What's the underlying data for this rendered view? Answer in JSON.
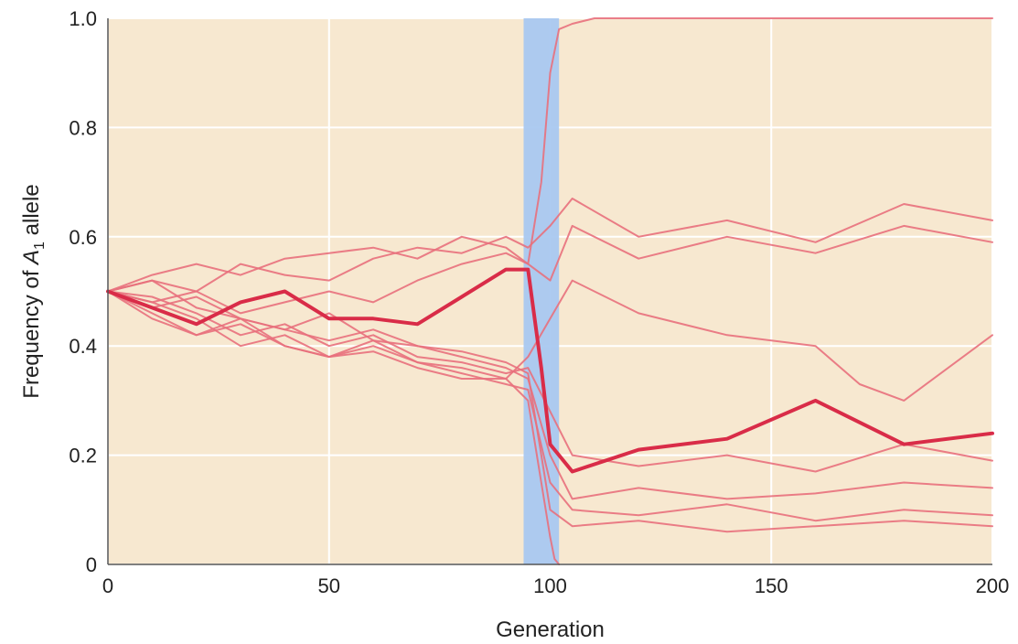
{
  "chart_data": {
    "type": "line",
    "title": "",
    "xlabel": "Generation",
    "ylabel": "Frequency of A1 allele",
    "ylabel_parts": {
      "prefix": "Frequency of ",
      "allele": "A",
      "sub": "1",
      "suffix": " allele"
    },
    "xlim": [
      0,
      200
    ],
    "ylim": [
      0,
      1.0
    ],
    "xticks": [
      0,
      50,
      100,
      150,
      200
    ],
    "xtick_labels": [
      "0",
      "50",
      "100",
      "150",
      "200"
    ],
    "yticks": [
      0,
      0.2,
      0.4,
      0.6,
      0.8,
      1.0
    ],
    "ytick_labels": [
      "0",
      "0.2",
      "0.4",
      "0.6",
      "0.8",
      "1.0"
    ],
    "grid": true,
    "legend": "none",
    "bottleneck_band": {
      "x_start": 94,
      "x_end": 102,
      "color": "#a9c8f0"
    },
    "colors": {
      "background": "#f7e8d0",
      "grid": "#ffffff",
      "line": "#e8707c",
      "highlight": "#d92c48"
    },
    "series": [
      {
        "x": [
          0,
          10,
          20,
          30,
          40,
          50,
          60,
          70,
          80,
          90,
          95,
          98,
          100,
          105,
          120,
          140,
          160,
          180,
          200
        ],
        "values": [
          0.5,
          0.47,
          0.44,
          0.48,
          0.5,
          0.45,
          0.45,
          0.44,
          0.49,
          0.54,
          0.54,
          0.36,
          0.22,
          0.17,
          0.21,
          0.23,
          0.3,
          0.22,
          0.24
        ],
        "highlight": true
      },
      {
        "x": [
          0,
          10,
          20,
          30,
          40,
          50,
          60,
          70,
          80,
          90,
          95,
          98,
          100,
          102,
          105,
          110,
          120,
          200
        ],
        "values": [
          0.5,
          0.53,
          0.55,
          0.53,
          0.56,
          0.57,
          0.58,
          0.56,
          0.6,
          0.58,
          0.55,
          0.7,
          0.9,
          0.98,
          0.99,
          1.0,
          1.0,
          1.0
        ]
      },
      {
        "x": [
          0,
          10,
          20,
          30,
          40,
          50,
          60,
          70,
          80,
          90,
          95,
          98,
          100,
          101,
          102
        ],
        "values": [
          0.5,
          0.46,
          0.42,
          0.45,
          0.4,
          0.38,
          0.4,
          0.37,
          0.36,
          0.34,
          0.3,
          0.15,
          0.05,
          0.01,
          0.0
        ]
      },
      {
        "x": [
          0,
          10,
          20,
          30,
          40,
          50,
          60,
          70,
          80,
          90,
          95,
          100,
          105,
          120,
          140,
          160,
          180,
          200
        ],
        "values": [
          0.5,
          0.52,
          0.5,
          0.55,
          0.53,
          0.52,
          0.56,
          0.58,
          0.57,
          0.6,
          0.58,
          0.62,
          0.67,
          0.6,
          0.63,
          0.59,
          0.66,
          0.63
        ]
      },
      {
        "x": [
          0,
          10,
          20,
          30,
          40,
          50,
          60,
          70,
          80,
          90,
          95,
          100,
          105,
          120,
          140,
          160,
          180,
          200
        ],
        "values": [
          0.5,
          0.48,
          0.5,
          0.46,
          0.48,
          0.5,
          0.48,
          0.52,
          0.55,
          0.57,
          0.55,
          0.52,
          0.62,
          0.56,
          0.6,
          0.57,
          0.62,
          0.59
        ]
      },
      {
        "x": [
          0,
          10,
          20,
          30,
          40,
          50,
          60,
          70,
          80,
          90,
          95,
          100,
          105,
          120,
          140,
          160,
          170,
          180,
          200
        ],
        "values": [
          0.5,
          0.45,
          0.42,
          0.44,
          0.4,
          0.38,
          0.39,
          0.36,
          0.34,
          0.34,
          0.38,
          0.45,
          0.52,
          0.46,
          0.42,
          0.4,
          0.33,
          0.3,
          0.42
        ]
      },
      {
        "x": [
          0,
          10,
          20,
          30,
          40,
          50,
          60,
          70,
          80,
          90,
          95,
          100,
          105,
          120,
          140,
          160,
          180,
          200
        ],
        "values": [
          0.5,
          0.49,
          0.46,
          0.42,
          0.44,
          0.4,
          0.42,
          0.38,
          0.37,
          0.35,
          0.36,
          0.28,
          0.2,
          0.18,
          0.2,
          0.17,
          0.22,
          0.19
        ]
      },
      {
        "x": [
          0,
          10,
          20,
          30,
          40,
          50,
          60,
          70,
          80,
          90,
          95,
          100,
          105,
          120,
          140,
          160,
          180,
          200
        ],
        "values": [
          0.5,
          0.52,
          0.47,
          0.45,
          0.43,
          0.46,
          0.41,
          0.4,
          0.38,
          0.36,
          0.34,
          0.2,
          0.12,
          0.14,
          0.12,
          0.13,
          0.15,
          0.14
        ]
      },
      {
        "x": [
          0,
          10,
          20,
          30,
          40,
          50,
          60,
          70,
          80,
          90,
          95,
          100,
          105,
          120,
          140,
          160,
          180,
          200
        ],
        "values": [
          0.5,
          0.48,
          0.45,
          0.4,
          0.42,
          0.38,
          0.41,
          0.37,
          0.35,
          0.33,
          0.32,
          0.15,
          0.1,
          0.09,
          0.11,
          0.08,
          0.1,
          0.09
        ]
      },
      {
        "x": [
          0,
          10,
          20,
          30,
          40,
          50,
          60,
          70,
          80,
          90,
          95,
          100,
          105,
          120,
          140,
          160,
          180,
          200
        ],
        "values": [
          0.5,
          0.47,
          0.49,
          0.45,
          0.43,
          0.41,
          0.43,
          0.4,
          0.39,
          0.37,
          0.35,
          0.1,
          0.07,
          0.08,
          0.06,
          0.07,
          0.08,
          0.07
        ]
      }
    ]
  }
}
